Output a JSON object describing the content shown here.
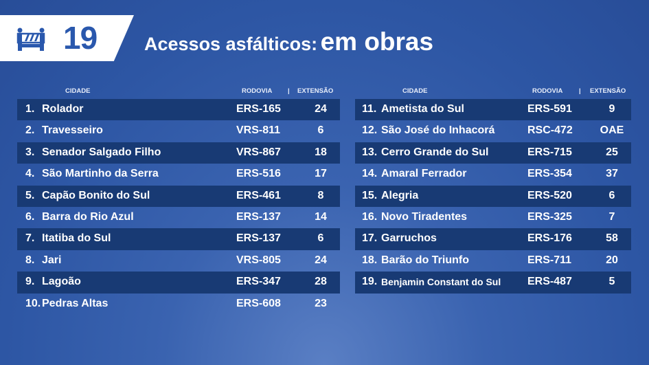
{
  "header": {
    "count": "19",
    "title_a": "Acessos asfálticos:",
    "title_b": "em obras",
    "icon": "road-barrier-icon"
  },
  "columns": {
    "city": "CIDADE",
    "road": "RODOVIA",
    "sep": "|",
    "ext": "EXTENSÃO"
  },
  "colors": {
    "background": "#2d56a4",
    "row_dark": "#183a74",
    "badge_text": "#2a58ad"
  },
  "left": [
    {
      "n": "1.",
      "city": "Rolador",
      "road": "ERS-165",
      "ext": "24"
    },
    {
      "n": "2.",
      "city": "Travesseiro",
      "road": "VRS-811",
      "ext": "6"
    },
    {
      "n": "3.",
      "city": "Senador Salgado Filho",
      "road": "VRS-867",
      "ext": "18"
    },
    {
      "n": "4.",
      "city": "São Martinho da Serra",
      "road": "ERS-516",
      "ext": "17"
    },
    {
      "n": "5.",
      "city": "Capão Bonito do Sul",
      "road": "ERS-461",
      "ext": "8"
    },
    {
      "n": "6.",
      "city": "Barra do Rio Azul",
      "road": "ERS-137",
      "ext": "14"
    },
    {
      "n": "7.",
      "city": "Itatiba do Sul",
      "road": "ERS-137",
      "ext": "6"
    },
    {
      "n": "8.",
      "city": "Jari",
      "road": "VRS-805",
      "ext": "24"
    },
    {
      "n": "9.",
      "city": "Lagoão",
      "road": "ERS-347",
      "ext": "28"
    },
    {
      "n": "10.",
      "city": "Pedras Altas",
      "road": "ERS-608",
      "ext": "23"
    }
  ],
  "right": [
    {
      "n": "11.",
      "city": "Ametista do Sul",
      "road": "ERS-591",
      "ext": "9"
    },
    {
      "n": "12.",
      "city": "São José do Inhacorá",
      "road": "RSC-472",
      "ext": "OAE"
    },
    {
      "n": "13.",
      "city": "Cerro Grande do Sul",
      "road": "ERS-715",
      "ext": "25"
    },
    {
      "n": "14.",
      "city": "Amaral Ferrador",
      "road": "ERS-354",
      "ext": "37"
    },
    {
      "n": "15.",
      "city": "Alegria",
      "road": "ERS-520",
      "ext": "6"
    },
    {
      "n": "16.",
      "city": "Novo Tiradentes",
      "road": "ERS-325",
      "ext": "7"
    },
    {
      "n": "17.",
      "city": "Garruchos",
      "road": "ERS-176",
      "ext": "58"
    },
    {
      "n": "18.",
      "city": "Barão do Triunfo",
      "road": "ERS-711",
      "ext": "20"
    },
    {
      "n": "19.",
      "city": "Benjamin Constant do Sul",
      "road": "ERS-487",
      "ext": "5"
    }
  ]
}
